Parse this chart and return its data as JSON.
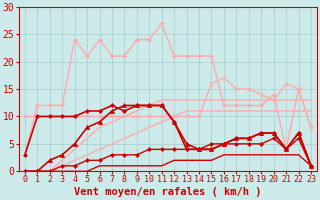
{
  "background_color": "#cceaea",
  "grid_color": "#aacccc",
  "xlabel": "Vent moyen/en rafales ( km/h )",
  "xlabel_color": "#cc0000",
  "xlabel_fontsize": 7.5,
  "tick_color": "#cc0000",
  "tick_fontsize": 6,
  "xlim": [
    -0.5,
    23.5
  ],
  "ylim": [
    0,
    30
  ],
  "yticks": [
    0,
    5,
    10,
    15,
    20,
    25,
    30
  ],
  "xticks": [
    0,
    1,
    2,
    3,
    4,
    5,
    6,
    7,
    8,
    9,
    10,
    11,
    12,
    13,
    14,
    15,
    16,
    17,
    18,
    19,
    20,
    21,
    22,
    23
  ],
  "lines": [
    {
      "x": [
        0,
        1,
        2,
        3,
        4,
        5,
        6,
        7,
        8,
        9,
        10,
        11,
        12,
        13,
        14,
        15,
        16,
        17,
        18,
        19,
        20,
        21,
        22,
        23
      ],
      "y": [
        0,
        0,
        0,
        1,
        2,
        3,
        4,
        5,
        6,
        7,
        8,
        9,
        10,
        11,
        11,
        11,
        11,
        11,
        11,
        11,
        11,
        11,
        11,
        11
      ],
      "color": "#ffaaaa",
      "lw": 1.0,
      "marker": null,
      "ms": 0
    },
    {
      "x": [
        0,
        1,
        2,
        3,
        4,
        5,
        6,
        7,
        8,
        9,
        10,
        11,
        12,
        13,
        14,
        15,
        16,
        17,
        18,
        19,
        20,
        21,
        22,
        23
      ],
      "y": [
        0,
        0,
        0,
        2,
        4,
        6,
        8,
        9,
        10,
        11,
        12,
        13,
        13,
        13,
        13,
        13,
        13,
        13,
        13,
        13,
        13,
        13,
        13,
        13
      ],
      "color": "#ffaaaa",
      "lw": 1.0,
      "marker": null,
      "ms": 0
    },
    {
      "x": [
        0,
        1,
        2,
        3,
        4,
        5,
        6,
        7,
        8,
        9,
        10,
        11,
        12,
        13,
        14,
        15,
        16,
        17,
        18,
        19,
        20,
        21,
        22,
        23
      ],
      "y": [
        10,
        10,
        10,
        10,
        10,
        10,
        10,
        10,
        10,
        10,
        10,
        10,
        10,
        10,
        10,
        16,
        17,
        15,
        15,
        14,
        13,
        16,
        15,
        8
      ],
      "color": "#ffaaaa",
      "lw": 1.0,
      "marker": "x",
      "ms": 3
    },
    {
      "x": [
        0,
        1,
        2,
        3,
        4,
        5,
        6,
        7,
        8,
        9,
        10,
        11,
        12,
        13,
        14,
        15,
        16,
        17,
        18,
        19,
        20,
        21,
        22,
        23
      ],
      "y": [
        3,
        12,
        12,
        12,
        24,
        21,
        24,
        21,
        21,
        24,
        24,
        27,
        21,
        21,
        21,
        21,
        12,
        12,
        12,
        12,
        14,
        4,
        15,
        8
      ],
      "color": "#ffaaaa",
      "lw": 1.0,
      "marker": "D",
      "ms": 2
    },
    {
      "x": [
        0,
        1,
        2,
        3,
        4,
        5,
        6,
        7,
        8,
        9,
        10,
        11,
        12,
        13,
        14,
        15,
        16,
        17,
        18,
        19,
        20,
        21,
        22,
        23
      ],
      "y": [
        0,
        0,
        0,
        0,
        0,
        0,
        1,
        1,
        1,
        1,
        1,
        1,
        2,
        2,
        2,
        2,
        3,
        3,
        3,
        3,
        3,
        3,
        3,
        1
      ],
      "color": "#cc0000",
      "lw": 1.0,
      "marker": null,
      "ms": 0
    },
    {
      "x": [
        0,
        1,
        2,
        3,
        4,
        5,
        6,
        7,
        8,
        9,
        10,
        11,
        12,
        13,
        14,
        15,
        16,
        17,
        18,
        19,
        20,
        21,
        22,
        23
      ],
      "y": [
        0,
        0,
        0,
        1,
        1,
        2,
        2,
        3,
        3,
        3,
        4,
        4,
        4,
        4,
        4,
        5,
        5,
        5,
        5,
        5,
        6,
        4,
        6,
        1
      ],
      "color": "#cc0000",
      "lw": 1.0,
      "marker": "D",
      "ms": 2
    },
    {
      "x": [
        0,
        1,
        2,
        3,
        4,
        5,
        6,
        7,
        8,
        9,
        10,
        11,
        12,
        13,
        14,
        15,
        16,
        17,
        18,
        19,
        20,
        21,
        22,
        23
      ],
      "y": [
        0,
        0,
        2,
        3,
        5,
        8,
        9,
        11,
        12,
        12,
        12,
        12,
        9,
        5,
        4,
        4,
        5,
        6,
        6,
        7,
        7,
        4,
        7,
        1
      ],
      "color": "#cc0000",
      "lw": 1.2,
      "marker": "^",
      "ms": 3
    },
    {
      "x": [
        0,
        1,
        2,
        3,
        4,
        5,
        6,
        7,
        8,
        9,
        10,
        11,
        12,
        13,
        14,
        15,
        16,
        17,
        18,
        19,
        20,
        21,
        22,
        23
      ],
      "y": [
        3,
        10,
        10,
        10,
        10,
        11,
        11,
        12,
        11,
        12,
        12,
        12,
        9,
        4,
        4,
        4,
        5,
        6,
        6,
        7,
        7,
        4,
        7,
        1
      ],
      "color": "#cc0000",
      "lw": 1.2,
      "marker": "D",
      "ms": 2
    }
  ]
}
